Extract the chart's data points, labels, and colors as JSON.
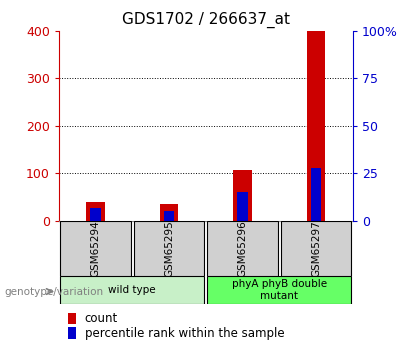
{
  "title": "GDS1702 / 266637_at",
  "samples": [
    "GSM65294",
    "GSM65295",
    "GSM65296",
    "GSM65297"
  ],
  "count_values": [
    40,
    35,
    107,
    400
  ],
  "percentile_values": [
    7,
    5,
    15,
    28
  ],
  "left_ylim": [
    0,
    400
  ],
  "right_ylim": [
    0,
    100
  ],
  "left_yticks": [
    0,
    100,
    200,
    300,
    400
  ],
  "right_yticks": [
    0,
    25,
    50,
    75,
    100
  ],
  "right_yticklabels": [
    "0",
    "25",
    "50",
    "75",
    "100%"
  ],
  "groups": [
    {
      "label": "wild type",
      "samples": [
        0,
        1
      ]
    },
    {
      "label": "phyA phyB double\nmutant",
      "samples": [
        2,
        3
      ]
    }
  ],
  "group_color_light": "#c8f0c8",
  "group_color_bright": "#66ff66",
  "count_color": "#cc0000",
  "percentile_color": "#0000cc",
  "left_axis_color": "#cc0000",
  "right_axis_color": "#0000cc",
  "title_fontsize": 11,
  "legend_items": [
    "count",
    "percentile rank within the sample"
  ],
  "annotation_text": "genotype/variation",
  "background_color": "#ffffff",
  "sample_box_color": "#d0d0d0"
}
